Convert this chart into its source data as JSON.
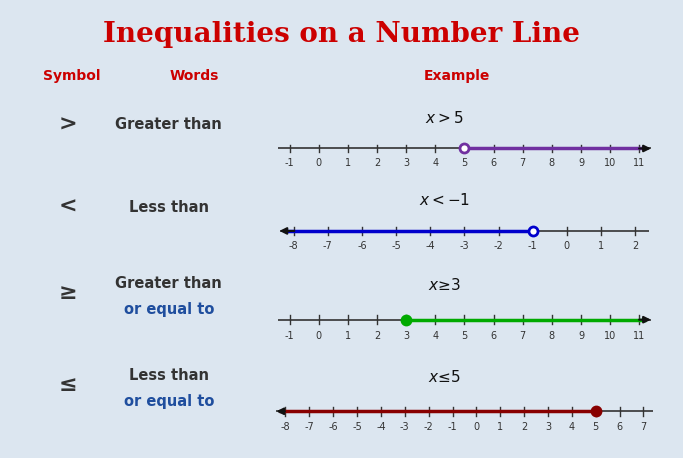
{
  "title": "Inequalities on a Number Line",
  "title_color": "#cc0000",
  "title_fontsize": 20,
  "bg_color": "#ffffff",
  "outer_bg": "#dce6f0",
  "header_color": "#cc0000",
  "symbol_color": "#333333",
  "word_color": "#333333",
  "equal_to_color": "#1f4e9e",
  "rows": [
    {
      "symbol": ">",
      "words": [
        "Greater than"
      ],
      "words_color": [
        "#333333"
      ],
      "inequality": "x > 5",
      "line_color": "#7030a0",
      "point": 5,
      "open": true,
      "direction": "right",
      "ticks": [
        -1,
        0,
        1,
        2,
        3,
        4,
        5,
        6,
        7,
        8,
        9,
        10,
        11
      ],
      "xmin": -1.8,
      "xmax": 11.8
    },
    {
      "symbol": "<",
      "words": [
        "Less than"
      ],
      "words_color": [
        "#333333"
      ],
      "inequality": "x < -1",
      "line_color": "#0000cc",
      "point": -1,
      "open": true,
      "direction": "left",
      "ticks": [
        -8,
        -7,
        -6,
        -5,
        -4,
        -3,
        -2,
        -1,
        0,
        1,
        2
      ],
      "xmin": -8.8,
      "xmax": 2.8
    },
    {
      "symbol": "≥",
      "words": [
        "Greater than",
        "or equal to"
      ],
      "words_color": [
        "#333333",
        "#1f4e9e"
      ],
      "inequality": "x≥3",
      "line_color": "#00aa00",
      "point": 3,
      "open": false,
      "direction": "right",
      "ticks": [
        -1,
        0,
        1,
        2,
        3,
        4,
        5,
        6,
        7,
        8,
        9,
        10,
        11
      ],
      "xmin": -1.8,
      "xmax": 11.8
    },
    {
      "symbol": "≤",
      "words": [
        "Less than",
        "or equal to"
      ],
      "words_color": [
        "#333333",
        "#1f4e9e"
      ],
      "inequality": "x≤5",
      "line_color": "#880000",
      "point": 5,
      "open": false,
      "direction": "left",
      "ticks": [
        -8,
        -7,
        -6,
        -5,
        -4,
        -3,
        -2,
        -1,
        0,
        1,
        2,
        3,
        4,
        5,
        6,
        7
      ],
      "xmin": -8.8,
      "xmax": 7.8
    }
  ]
}
